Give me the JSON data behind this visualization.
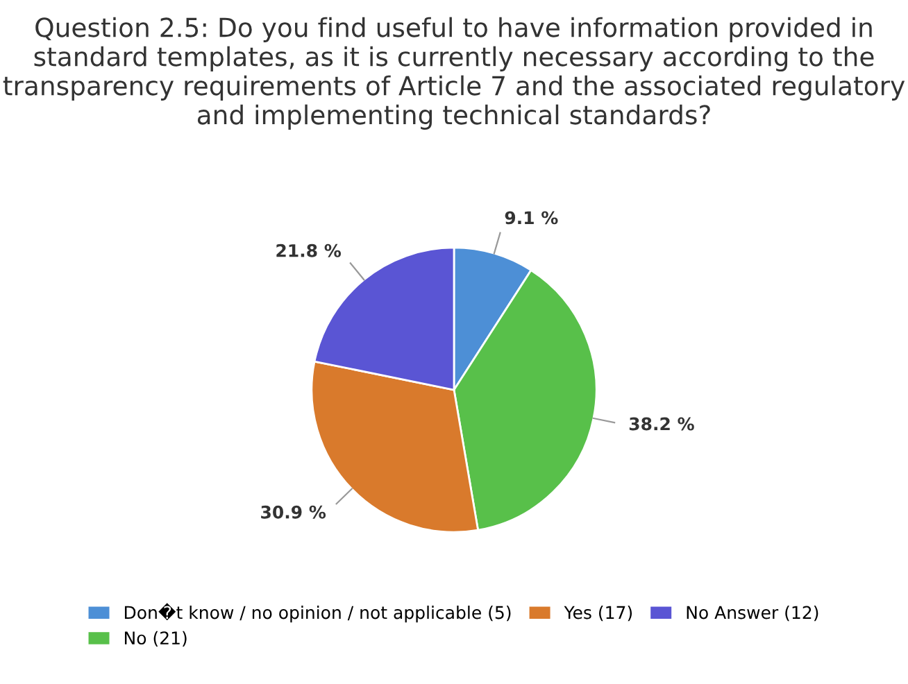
{
  "chart_data": {
    "type": "pie",
    "title": "Question 2.5: Do you find useful to have information provided in standard templates, as it is currently necessary according to the transparency requirements of Article 7 and the associated regulatory and implementing technical standards?",
    "categories": [
      "Don�t know / no opinion / not applicable (5)",
      "No (21)",
      "Yes (17)",
      "No Answer (12)"
    ],
    "values": [
      9.1,
      38.2,
      30.9,
      21.8
    ],
    "value_labels": [
      "9.1 %",
      "38.2 %",
      "30.9 %",
      "21.8 %"
    ],
    "colors": [
      "#4d8fd6",
      "#58c04a",
      "#d97a2c",
      "#5a55d4"
    ],
    "legend": "bottom"
  }
}
